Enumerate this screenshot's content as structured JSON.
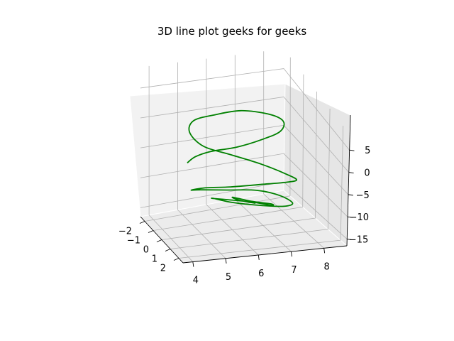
{
  "chart_data": {
    "type": "line3d",
    "title": "3D line plot geeks for geeks",
    "xlabel": "",
    "ylabel": "",
    "zlabel": "",
    "grid": true,
    "xticks": [
      "−2",
      "−1",
      "0",
      "1",
      "2"
    ],
    "yticks": [
      "4",
      "5",
      "6",
      "7",
      "8"
    ],
    "zticks": [
      "5",
      "0",
      "−5",
      "−10",
      "−15"
    ],
    "series": [
      {
        "color": "#008000",
        "x": [
          -0.3,
          -0.1,
          0.2,
          0.6,
          0.9,
          1.1,
          0.8,
          0.3,
          -0.2,
          -0.6,
          -0.9,
          -0.7,
          -0.2,
          0.4,
          0.9,
          1.3,
          1.2,
          0.6,
          0.0,
          -0.5,
          -0.9,
          -1.1,
          -0.8,
          -0.3,
          0.2,
          0.6,
          0.9,
          0.7,
          0.2,
          -0.3,
          -0.6,
          -0.4,
          0.1,
          0.5,
          0.7,
          0.4,
          0.0,
          -0.3,
          0.1,
          0.4
        ],
        "y": [
          4.6,
          4.8,
          5.2,
          5.9,
          6.6,
          7.1,
          7.3,
          7.0,
          6.3,
          5.6,
          5.0,
          4.8,
          5.1,
          5.8,
          6.6,
          7.3,
          7.6,
          7.5,
          6.9,
          6.1,
          5.4,
          5.0,
          5.2,
          5.9,
          6.7,
          7.3,
          7.6,
          7.4,
          6.8,
          6.1,
          5.6,
          5.5,
          5.9,
          6.5,
          7.0,
          7.1,
          6.6,
          6.1,
          6.2,
          6.6
        ],
        "z": [
          -3.5,
          -2.0,
          -0.5,
          1.0,
          3.0,
          5.0,
          6.0,
          6.0,
          5.5,
          4.0,
          2.5,
          1.0,
          -0.5,
          -1.0,
          -2.0,
          -3.5,
          -5.0,
          -7.0,
          -8.5,
          -9.5,
          -10.0,
          -10.5,
          -10.0,
          -9.5,
          -9.0,
          -9.5,
          -10.5,
          -11.5,
          -12.0,
          -12.0,
          -11.5,
          -11.0,
          -10.5,
          -10.5,
          -11.0,
          -11.5,
          -11.5,
          -11.0,
          -10.8,
          -11.0
        ]
      }
    ]
  }
}
